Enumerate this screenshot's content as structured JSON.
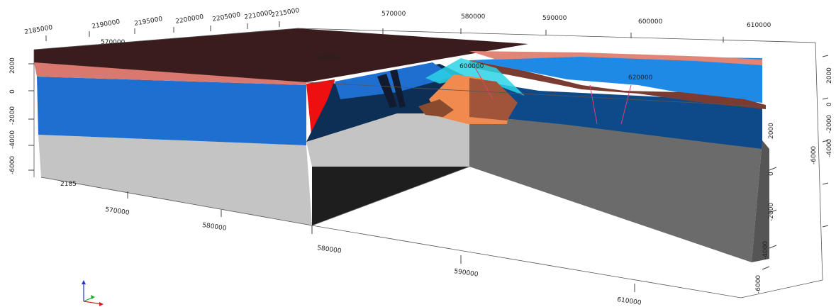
{
  "colors": {
    "surface_top": "#3a1c1c",
    "pink_layer": "#d9786e",
    "blue_layer": "#1f6fd1",
    "dark_blue_layer": "#0e4a8a",
    "gray_layer": "#c4c4c4",
    "dark_gray": "#6b6b6b",
    "black_face": "#1e1e1e",
    "red_fault_block": "#ee1010",
    "orange_intrusion": "#f08a4f",
    "cyan_body": "#2bd4e6",
    "fault_line": "#e0406a"
  },
  "axes": {
    "top_left_northing": [
      "2185000",
      "2190000",
      "2195000",
      "2200000",
      "2205000",
      "2210000",
      "2215000"
    ],
    "top_left_inner_easting": [
      "570000",
      "580000",
      "600000"
    ],
    "top_right_easting": [
      "570000",
      "580000",
      "590000",
      "600000",
      "610000"
    ],
    "inner_right_easting": [
      "620000"
    ],
    "left_depth": [
      "2000",
      "0",
      "-2000",
      "-4000",
      "-6000"
    ],
    "left_bottom_northing": [
      "2185"
    ],
    "bottom_left_easting": [
      "570000",
      "580000"
    ],
    "bottom_front_easting": [
      "580000",
      "590000",
      "610000"
    ],
    "right_depth_outer": [
      "2000",
      "0",
      "-2000",
      "-4000",
      "-6000"
    ],
    "right_side_front": [
      "0",
      "-2000",
      "-4000",
      "-6000"
    ]
  },
  "orientation_icon": "axis-triad-icon"
}
